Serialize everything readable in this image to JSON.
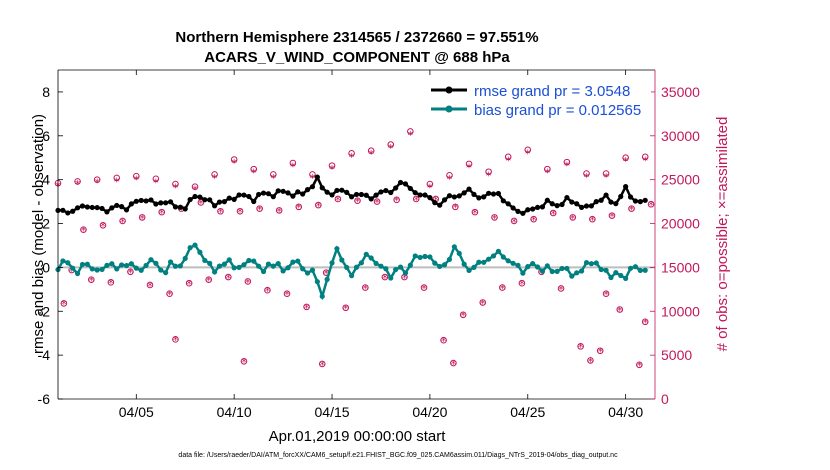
{
  "chart_data": {
    "type": "line",
    "title_line1": "Northern Hemisphere 2314565 / 2372660 = 97.551%",
    "title_line2": "ACARS_V_WIND_COMPONENT @ 688 hPa",
    "xlabel": "Apr.01,2019 00:00:00 start",
    "ylabel_left": "rmse and bias (model - observation)",
    "ylabel_right": "# of obs: o=possible; ×=assimilated",
    "footnote": "data file: /Users/raeder/DAI/ATM_forcXX/CAM6_setup/f.e21.FHIST_BGC.f09_025.CAM6assim.011/Diags_NTrS_2019-04/obs_diag_output.nc",
    "xlim": [
      1,
      31.5
    ],
    "ylim_left": [
      -6,
      9
    ],
    "ylim_right": [
      0,
      37500
    ],
    "x_ticks": [
      5,
      10,
      15,
      20,
      25,
      30
    ],
    "x_tick_labels": [
      "04/05",
      "04/10",
      "04/15",
      "04/20",
      "04/25",
      "04/30"
    ],
    "y_ticks_left": [
      -6,
      -4,
      -2,
      0,
      2,
      4,
      6,
      8
    ],
    "y_ticks_right": [
      0,
      5000,
      10000,
      15000,
      20000,
      25000,
      30000,
      35000
    ],
    "legend": [
      {
        "label": "rmse grand pr = 3.0548",
        "color": "#000000"
      },
      {
        "label": "bias grand pr = 0.012565",
        "color": "#008080"
      }
    ],
    "zero_line_color": "#bdbdbd",
    "obs_color": "#c2185b",
    "rmse_key": [
      [
        1.0,
        2.6
      ],
      [
        1.5,
        2.5
      ],
      [
        2.0,
        2.7
      ],
      [
        2.5,
        2.8
      ],
      [
        3.0,
        2.7
      ],
      [
        3.5,
        2.6
      ],
      [
        4.0,
        2.8
      ],
      [
        4.5,
        2.7
      ],
      [
        5.0,
        3.0
      ],
      [
        5.5,
        3.1
      ],
      [
        6.0,
        2.9
      ],
      [
        6.5,
        3.0
      ],
      [
        7.0,
        2.8
      ],
      [
        7.5,
        2.7
      ],
      [
        8.0,
        3.3
      ],
      [
        8.5,
        3.1
      ],
      [
        9.0,
        2.9
      ],
      [
        9.5,
        3.0
      ],
      [
        10.0,
        3.2
      ],
      [
        10.5,
        3.3
      ],
      [
        11.0,
        3.1
      ],
      [
        11.5,
        3.4
      ],
      [
        12.0,
        3.3
      ],
      [
        12.5,
        3.5
      ],
      [
        13.0,
        3.3
      ],
      [
        13.5,
        3.4
      ],
      [
        14.0,
        3.7
      ],
      [
        14.3,
        4.1
      ],
      [
        14.6,
        3.5
      ],
      [
        15.0,
        3.3
      ],
      [
        15.5,
        3.6
      ],
      [
        16.0,
        3.2
      ],
      [
        16.5,
        3.4
      ],
      [
        17.0,
        3.1
      ],
      [
        17.5,
        3.5
      ],
      [
        18.0,
        3.4
      ],
      [
        18.5,
        3.9
      ],
      [
        19.0,
        3.6
      ],
      [
        19.5,
        3.3
      ],
      [
        20.0,
        3.2
      ],
      [
        20.5,
        2.8
      ],
      [
        21.0,
        3.3
      ],
      [
        21.5,
        3.2
      ],
      [
        22.0,
        3.6
      ],
      [
        22.5,
        3.1
      ],
      [
        23.0,
        3.4
      ],
      [
        23.5,
        3.3
      ],
      [
        24.0,
        2.9
      ],
      [
        24.5,
        2.5
      ],
      [
        25.0,
        2.6
      ],
      [
        25.5,
        2.7
      ],
      [
        26.0,
        3.0
      ],
      [
        26.5,
        2.8
      ],
      [
        27.0,
        3.1
      ],
      [
        27.5,
        2.9
      ],
      [
        28.0,
        2.7
      ],
      [
        28.5,
        3.0
      ],
      [
        29.0,
        3.2
      ],
      [
        29.5,
        2.9
      ],
      [
        30.0,
        3.6
      ],
      [
        30.5,
        3.0
      ],
      [
        31.0,
        3.0
      ],
      [
        31.3,
        3.1
      ]
    ],
    "bias_key": [
      [
        1.0,
        -0.1
      ],
      [
        1.3,
        0.3
      ],
      [
        1.6,
        0.2
      ],
      [
        2.0,
        -0.3
      ],
      [
        2.4,
        0.3
      ],
      [
        2.8,
        -0.1
      ],
      [
        3.2,
        -0.2
      ],
      [
        3.6,
        0.3
      ],
      [
        4.0,
        -0.1
      ],
      [
        4.4,
        0.2
      ],
      [
        4.8,
        0.1
      ],
      [
        5.2,
        -0.2
      ],
      [
        5.6,
        0.3
      ],
      [
        6.0,
        0.2
      ],
      [
        6.4,
        -0.3
      ],
      [
        6.8,
        0.2
      ],
      [
        7.2,
        0.0
      ],
      [
        7.6,
        0.6
      ],
      [
        8.0,
        1.1
      ],
      [
        8.3,
        0.6
      ],
      [
        8.6,
        0.2
      ],
      [
        9.0,
        -0.1
      ],
      [
        9.4,
        0.1
      ],
      [
        9.8,
        0.3
      ],
      [
        10.2,
        -0.1
      ],
      [
        10.6,
        0.2
      ],
      [
        11.0,
        0.4
      ],
      [
        11.4,
        -0.3
      ],
      [
        11.8,
        0.2
      ],
      [
        12.2,
        0.1
      ],
      [
        12.6,
        -0.2
      ],
      [
        13.0,
        0.3
      ],
      [
        13.4,
        0.1
      ],
      [
        13.8,
        -0.3
      ],
      [
        14.1,
        0.0
      ],
      [
        14.4,
        -1.5
      ],
      [
        14.7,
        -0.7
      ],
      [
        15.0,
        0.2
      ],
      [
        15.3,
        0.9
      ],
      [
        15.6,
        0.2
      ],
      [
        16.0,
        -0.4
      ],
      [
        16.4,
        0.2
      ],
      [
        16.8,
        0.6
      ],
      [
        17.2,
        0.2
      ],
      [
        17.6,
        0.1
      ],
      [
        18.0,
        -0.5
      ],
      [
        18.4,
        0.2
      ],
      [
        18.8,
        -0.4
      ],
      [
        19.2,
        0.6
      ],
      [
        19.6,
        0.4
      ],
      [
        20.0,
        0.5
      ],
      [
        20.3,
        0.2
      ],
      [
        20.6,
        -0.1
      ],
      [
        21.0,
        0.4
      ],
      [
        21.3,
        1.1
      ],
      [
        21.6,
        0.3
      ],
      [
        22.0,
        -0.1
      ],
      [
        22.4,
        0.1
      ],
      [
        22.8,
        0.3
      ],
      [
        23.2,
        0.5
      ],
      [
        23.6,
        0.7
      ],
      [
        24.0,
        0.3
      ],
      [
        24.4,
        0.1
      ],
      [
        24.8,
        -0.2
      ],
      [
        25.2,
        0.2
      ],
      [
        25.6,
        -0.1
      ],
      [
        26.0,
        0.0
      ],
      [
        26.4,
        -0.3
      ],
      [
        26.8,
        0.1
      ],
      [
        27.2,
        -0.4
      ],
      [
        27.6,
        -0.2
      ],
      [
        28.0,
        0.1
      ],
      [
        28.4,
        0.3
      ],
      [
        28.8,
        -0.1
      ],
      [
        29.2,
        -0.4
      ],
      [
        29.6,
        -0.2
      ],
      [
        30.0,
        -0.6
      ],
      [
        30.3,
        0.2
      ],
      [
        30.6,
        -0.1
      ],
      [
        31.0,
        -0.2
      ]
    ],
    "obs_possible": [
      [
        1.0,
        24600
      ],
      [
        2.0,
        24800
      ],
      [
        3.0,
        25000
      ],
      [
        4.0,
        25200
      ],
      [
        5.0,
        25400
      ],
      [
        6.0,
        25100
      ],
      [
        7.0,
        24500
      ],
      [
        8.0,
        24200
      ],
      [
        9.0,
        25600
      ],
      [
        10.0,
        27300
      ],
      [
        11.0,
        26200
      ],
      [
        12.0,
        25600
      ],
      [
        13.0,
        26900
      ],
      [
        14.0,
        25600
      ],
      [
        15.0,
        26600
      ],
      [
        16.0,
        28000
      ],
      [
        17.0,
        28300
      ],
      [
        18.0,
        29000
      ],
      [
        19.0,
        30500
      ],
      [
        20.0,
        24500
      ],
      [
        21.0,
        25500
      ],
      [
        22.0,
        26800
      ],
      [
        23.0,
        25900
      ],
      [
        24.0,
        27600
      ],
      [
        25.0,
        28400
      ],
      [
        26.0,
        26200
      ],
      [
        27.0,
        27000
      ],
      [
        28.0,
        25700
      ],
      [
        29.0,
        25700
      ],
      [
        30.0,
        27500
      ],
      [
        31.0,
        27600
      ],
      [
        1.3,
        10900
      ],
      [
        2.3,
        19300
      ],
      [
        3.3,
        19800
      ],
      [
        4.3,
        20300
      ],
      [
        5.3,
        20700
      ],
      [
        6.3,
        21300
      ],
      [
        7.3,
        21700
      ],
      [
        8.3,
        22400
      ],
      [
        9.3,
        21400
      ],
      [
        10.3,
        21400
      ],
      [
        11.3,
        21700
      ],
      [
        12.3,
        21500
      ],
      [
        13.3,
        21900
      ],
      [
        14.3,
        22100
      ],
      [
        15.3,
        22800
      ],
      [
        16.3,
        22600
      ],
      [
        17.3,
        22500
      ],
      [
        18.3,
        22700
      ],
      [
        19.3,
        22800
      ],
      [
        20.3,
        22800
      ],
      [
        21.3,
        21900
      ],
      [
        22.3,
        21300
      ],
      [
        23.3,
        20700
      ],
      [
        24.3,
        20300
      ],
      [
        25.3,
        20500
      ],
      [
        26.3,
        21200
      ],
      [
        27.3,
        20700
      ],
      [
        28.3,
        20500
      ],
      [
        29.3,
        20900
      ],
      [
        30.3,
        21700
      ],
      [
        31.3,
        22200
      ],
      [
        1.7,
        14700
      ],
      [
        2.7,
        13600
      ],
      [
        3.7,
        13300
      ],
      [
        4.7,
        14500
      ],
      [
        5.7,
        13000
      ],
      [
        6.7,
        12000
      ],
      [
        7.7,
        13200
      ],
      [
        8.7,
        13600
      ],
      [
        9.7,
        13900
      ],
      [
        10.7,
        13400
      ],
      [
        11.7,
        12400
      ],
      [
        12.7,
        12000
      ],
      [
        13.7,
        10500
      ],
      [
        14.7,
        14400
      ],
      [
        15.7,
        10400
      ],
      [
        16.7,
        12700
      ],
      [
        17.7,
        13900
      ],
      [
        18.7,
        13900
      ],
      [
        19.7,
        12700
      ],
      [
        20.7,
        6700
      ],
      [
        21.7,
        9600
      ],
      [
        22.7,
        11000
      ],
      [
        23.7,
        12700
      ],
      [
        24.7,
        13200
      ],
      [
        25.7,
        14500
      ],
      [
        26.7,
        12600
      ],
      [
        27.7,
        6000
      ],
      [
        28.7,
        5500
      ],
      [
        29.7,
        10200
      ],
      [
        30.7,
        3900
      ],
      [
        31.0,
        8800
      ],
      [
        7.0,
        6800
      ],
      [
        10.5,
        4300
      ],
      [
        14.5,
        4000
      ],
      [
        21.2,
        4100
      ],
      [
        28.2,
        4400
      ],
      [
        29.0,
        12000
      ]
    ],
    "obs_assimilated": [
      [
        1.0,
        24300
      ],
      [
        2.0,
        24500
      ],
      [
        3.0,
        24700
      ],
      [
        4.0,
        24800
      ],
      [
        5.0,
        25000
      ],
      [
        6.0,
        24700
      ],
      [
        7.0,
        24100
      ],
      [
        8.0,
        23900
      ],
      [
        9.0,
        25200
      ],
      [
        10.0,
        26900
      ],
      [
        11.0,
        25800
      ],
      [
        12.0,
        25200
      ],
      [
        13.0,
        26500
      ],
      [
        14.0,
        25200
      ],
      [
        15.0,
        26200
      ],
      [
        16.0,
        27600
      ],
      [
        17.0,
        27900
      ],
      [
        18.0,
        28600
      ],
      [
        19.0,
        30100
      ],
      [
        20.0,
        24100
      ],
      [
        21.0,
        25100
      ],
      [
        22.0,
        26400
      ],
      [
        23.0,
        25500
      ],
      [
        24.0,
        27200
      ],
      [
        25.0,
        28000
      ],
      [
        26.0,
        25800
      ],
      [
        27.0,
        26600
      ],
      [
        28.0,
        25300
      ],
      [
        29.0,
        25300
      ],
      [
        30.0,
        27100
      ],
      [
        31.0,
        27200
      ],
      [
        1.3,
        10800
      ],
      [
        2.3,
        19200
      ],
      [
        3.3,
        19700
      ],
      [
        4.3,
        20200
      ],
      [
        5.3,
        20600
      ],
      [
        6.3,
        21200
      ],
      [
        7.3,
        21600
      ],
      [
        8.3,
        22300
      ],
      [
        9.3,
        21300
      ],
      [
        10.3,
        21300
      ],
      [
        11.3,
        21600
      ],
      [
        12.3,
        21400
      ],
      [
        13.3,
        21800
      ],
      [
        14.3,
        22000
      ],
      [
        15.3,
        22700
      ],
      [
        16.3,
        22500
      ],
      [
        17.3,
        22400
      ],
      [
        18.3,
        22600
      ],
      [
        19.3,
        22700
      ],
      [
        20.3,
        22700
      ],
      [
        21.3,
        21800
      ],
      [
        22.3,
        21200
      ],
      [
        23.3,
        20600
      ],
      [
        24.3,
        20200
      ],
      [
        25.3,
        20400
      ],
      [
        26.3,
        21100
      ],
      [
        27.3,
        20600
      ],
      [
        28.3,
        20400
      ],
      [
        29.3,
        20800
      ],
      [
        30.3,
        21600
      ],
      [
        31.3,
        22100
      ],
      [
        1.7,
        14600
      ],
      [
        2.7,
        13500
      ],
      [
        3.7,
        13200
      ],
      [
        4.7,
        14400
      ],
      [
        5.7,
        12900
      ],
      [
        6.7,
        11900
      ],
      [
        7.7,
        13100
      ],
      [
        8.7,
        13500
      ],
      [
        9.7,
        13800
      ],
      [
        10.7,
        13300
      ],
      [
        11.7,
        12300
      ],
      [
        12.7,
        11900
      ],
      [
        13.7,
        10400
      ],
      [
        14.7,
        14300
      ],
      [
        15.7,
        10300
      ],
      [
        16.7,
        12600
      ],
      [
        17.7,
        13800
      ],
      [
        18.7,
        13800
      ],
      [
        19.7,
        12600
      ],
      [
        20.7,
        6600
      ],
      [
        21.7,
        9500
      ],
      [
        22.7,
        10900
      ],
      [
        23.7,
        12600
      ],
      [
        24.7,
        13100
      ],
      [
        25.7,
        14400
      ],
      [
        26.7,
        12500
      ],
      [
        27.7,
        5900
      ],
      [
        28.7,
        5400
      ],
      [
        29.7,
        10100
      ],
      [
        30.7,
        3800
      ],
      [
        31.0,
        8700
      ],
      [
        7.0,
        6700
      ],
      [
        10.5,
        4200
      ],
      [
        14.5,
        3900
      ],
      [
        21.2,
        4000
      ],
      [
        28.2,
        4300
      ],
      [
        29.0,
        11900
      ]
    ]
  }
}
